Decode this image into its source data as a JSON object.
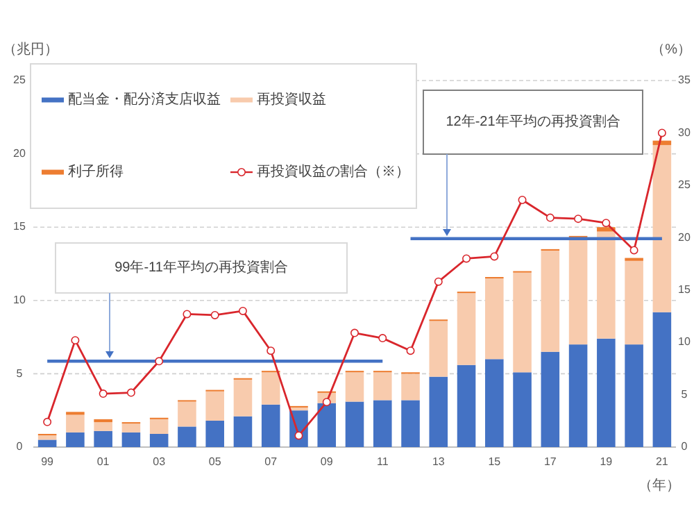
{
  "chart_data": {
    "type": "bar",
    "stacked": true,
    "categories": [
      "99",
      null,
      "01",
      null,
      "03",
      null,
      "05",
      null,
      "07",
      null,
      "09",
      null,
      "11",
      null,
      "13",
      null,
      "15",
      null,
      "17",
      null,
      "19",
      null,
      "21"
    ],
    "xlabel": "（年）",
    "ylabel": "（兆円）",
    "y2label": "（%）",
    "ylim": [
      0,
      25
    ],
    "yticks": [
      0,
      5,
      10,
      15,
      20,
      25
    ],
    "y2lim": [
      0,
      35
    ],
    "y2ticks": [
      0,
      5,
      10,
      15,
      20,
      25,
      30,
      35
    ],
    "grid": "y",
    "legend": "top left",
    "series": [
      {
        "name": "配当金・配分済支店収益",
        "color": "#4472c4",
        "values": [
          0.5,
          1.0,
          1.1,
          1.0,
          0.9,
          1.4,
          1.8,
          2.1,
          2.9,
          2.5,
          3.0,
          3.1,
          3.2,
          3.2,
          4.8,
          5.6,
          6.0,
          5.1,
          6.5,
          7.0,
          7.4,
          7.0,
          9.2
        ]
      },
      {
        "name": "再投資収益",
        "color": "#f8cbad",
        "values": [
          0.3,
          1.2,
          0.6,
          0.6,
          1.0,
          1.7,
          2.0,
          2.5,
          2.2,
          0.2,
          0.7,
          2.0,
          1.9,
          1.8,
          3.8,
          4.9,
          5.5,
          6.8,
          6.9,
          7.3,
          7.3,
          5.7,
          11.4
        ]
      },
      {
        "name": "利子所得",
        "color": "#ed7d31",
        "values": [
          0.1,
          0.2,
          0.2,
          0.1,
          0.1,
          0.1,
          0.1,
          0.1,
          0.1,
          0.1,
          0.1,
          0.1,
          0.1,
          0.1,
          0.1,
          0.1,
          0.1,
          0.1,
          0.1,
          0.1,
          0.3,
          0.2,
          0.3
        ]
      },
      {
        "name": "再投資収益の割合（※）",
        "type": "line",
        "axis": "y2",
        "marker": "circle",
        "color": "#d9262c",
        "values": [
          2.4,
          10.2,
          5.1,
          5.2,
          8.2,
          12.7,
          12.6,
          13.0,
          9.2,
          1.1,
          4.3,
          10.9,
          10.4,
          9.2,
          15.8,
          18.0,
          18.2,
          23.6,
          21.9,
          21.8,
          21.4,
          18.8,
          30.0
        ]
      },
      {
        "type": "line",
        "axis": "y2",
        "marker": "none",
        "color": "#4472c4",
        "values": [
          8.2,
          8.2,
          8.2,
          8.2,
          8.2,
          8.2,
          8.2,
          8.2,
          8.2,
          8.2,
          8.2,
          8.2,
          8.2,
          null,
          null,
          null,
          null,
          null,
          null,
          null,
          null,
          null,
          null
        ]
      },
      {
        "type": "line",
        "axis": "y2",
        "marker": "none",
        "color": "#4472c4",
        "values": [
          null,
          null,
          null,
          null,
          null,
          null,
          null,
          null,
          null,
          null,
          null,
          null,
          null,
          19.9,
          19.9,
          19.9,
          19.9,
          19.9,
          19.9,
          19.9,
          19.9,
          19.9,
          19.9
        ]
      }
    ],
    "annotations": [
      "99年-11年平均の再投資割合",
      "12年-21年平均の再投資割合"
    ]
  }
}
